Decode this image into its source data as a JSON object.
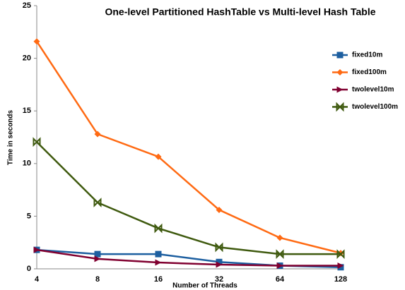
{
  "chart_data": {
    "type": "line",
    "title": "One-level Partitioned HashTable vs Multi-level Hash Table",
    "x_label": "Number of Threads",
    "y_label": "Time in seconds",
    "categories": [
      "4",
      "8",
      "16",
      "32",
      "64",
      "128"
    ],
    "ylim": [
      0,
      25
    ],
    "yticks": [
      0,
      5,
      10,
      15,
      20,
      25
    ],
    "grid": false,
    "legend": "right",
    "series": [
      {
        "name": "fixed10m",
        "color": "#1d5fa0",
        "marker": "square",
        "values": [
          1.8,
          1.4,
          1.4,
          0.65,
          0.3,
          0.15
        ]
      },
      {
        "name": "fixed100m",
        "color": "#ff6a13",
        "marker": "diamond",
        "values": [
          21.6,
          12.8,
          10.65,
          5.6,
          2.95,
          1.5
        ]
      },
      {
        "name": "twolevel10m",
        "color": "#800030",
        "marker": "triangle",
        "values": [
          1.8,
          0.95,
          0.6,
          0.4,
          0.3,
          0.3
        ]
      },
      {
        "name": "twolevel100m",
        "color": "#3f5a0f",
        "marker": "cross",
        "values": [
          12.05,
          6.3,
          3.85,
          2.05,
          1.4,
          1.4
        ]
      }
    ]
  }
}
